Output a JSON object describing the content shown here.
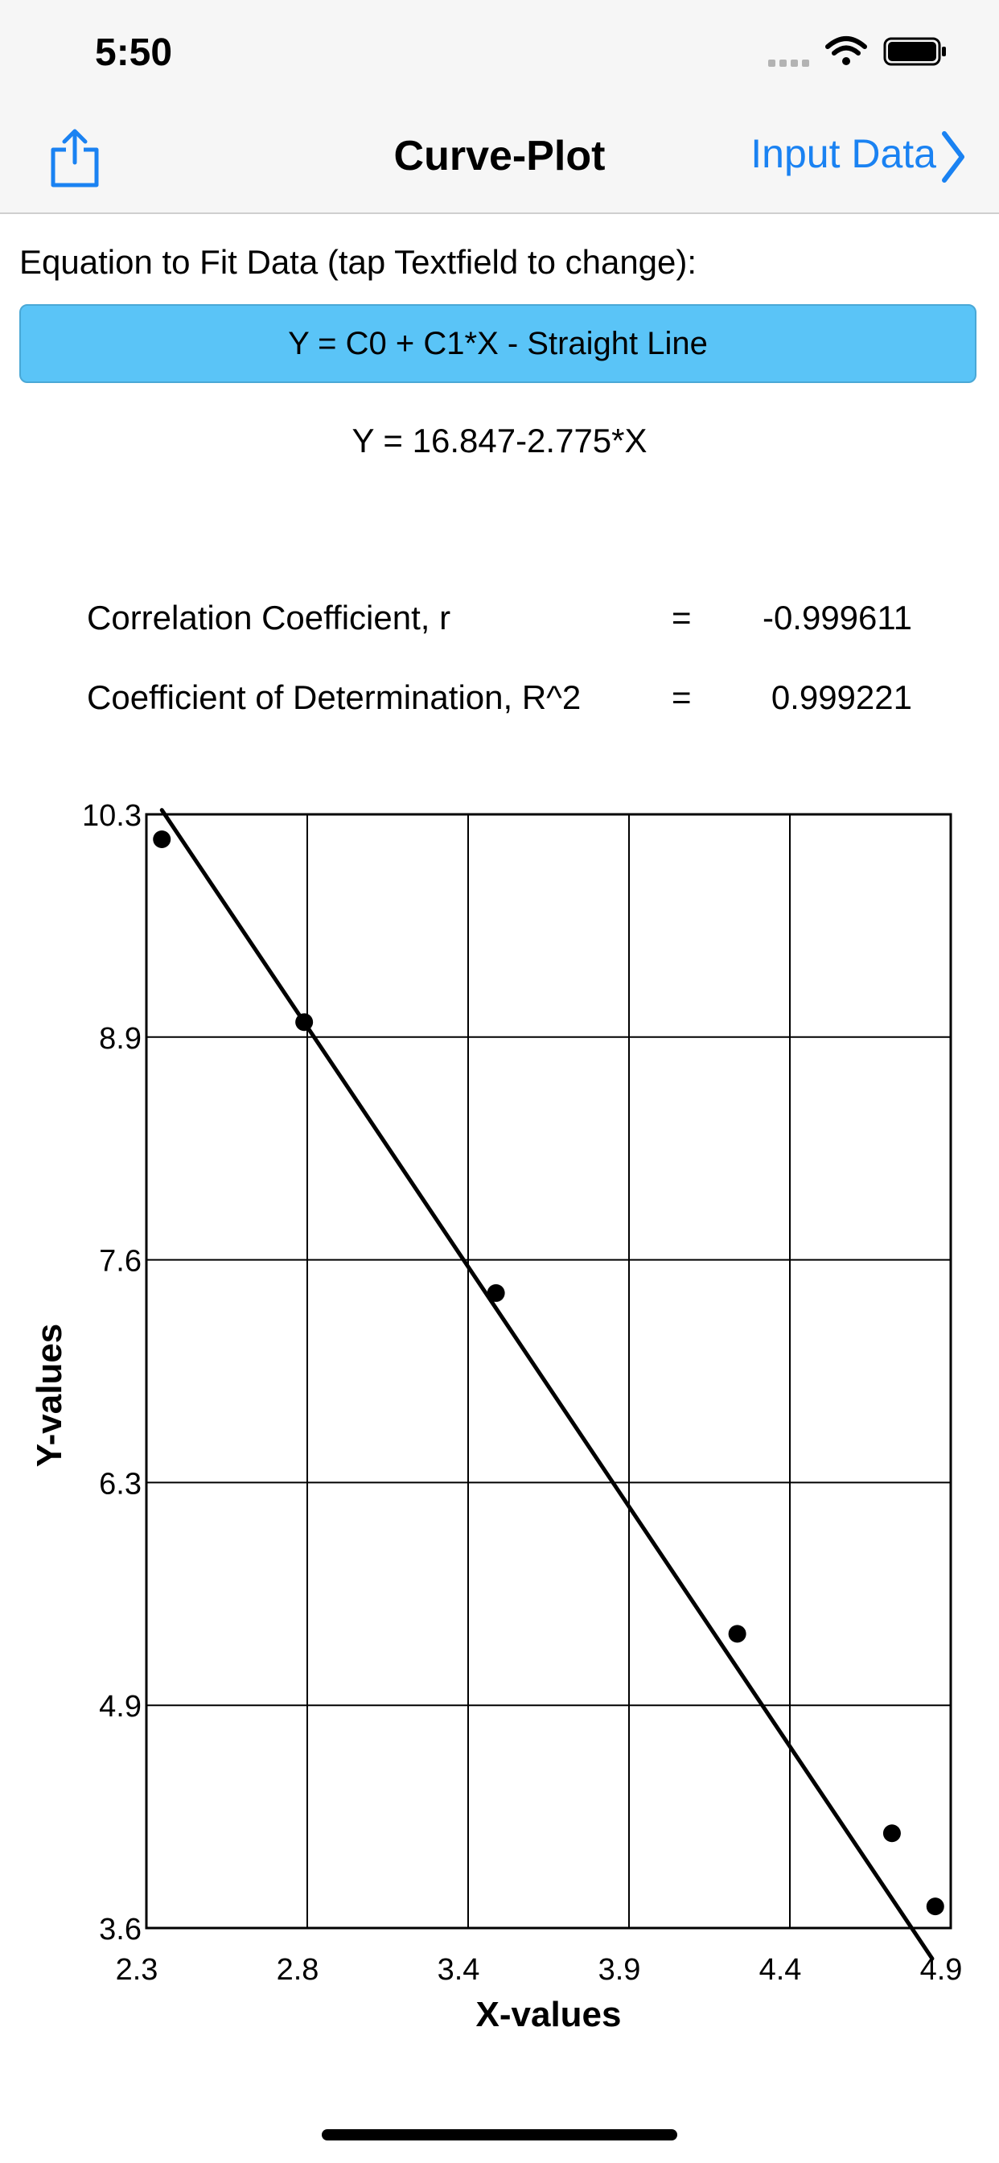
{
  "status": {
    "time": "5:50"
  },
  "nav": {
    "title": "Curve-Plot",
    "right_label": "Input Data"
  },
  "equation": {
    "label": "Equation to Fit Data (tap Textfield to change):",
    "field_value": "Y = C0 + C1*X  -  Straight Line",
    "fitted": "Y = 16.847-2.775*X"
  },
  "stats": [
    {
      "label": "Correlation Coefficient, r",
      "eq": "=",
      "value": "-0.999611"
    },
    {
      "label": "Coefficient of Determination, R^2",
      "eq": "=",
      "value": "0.999221"
    }
  ],
  "chart_data": {
    "type": "scatter",
    "xlabel": "X-values",
    "ylabel": "Y-values",
    "xlim": [
      2.3,
      4.9
    ],
    "ylim": [
      3.6,
      10.3
    ],
    "x_ticks": [
      "2.3",
      "2.8",
      "3.4",
      "3.9",
      "4.4",
      "4.9"
    ],
    "y_ticks": [
      "10.3",
      "8.9",
      "7.6",
      "6.3",
      "4.9",
      "3.6"
    ],
    "grid": true,
    "points": [
      {
        "x": 2.35,
        "y": 10.15
      },
      {
        "x": 2.81,
        "y": 9.05
      },
      {
        "x": 3.43,
        "y": 7.42
      },
      {
        "x": 4.21,
        "y": 5.37
      },
      {
        "x": 4.71,
        "y": 4.17
      },
      {
        "x": 4.85,
        "y": 3.73
      }
    ],
    "fit_line": {
      "c0": 16.847,
      "c1": -2.775,
      "x_start": 2.35,
      "x_end": 4.84
    }
  }
}
